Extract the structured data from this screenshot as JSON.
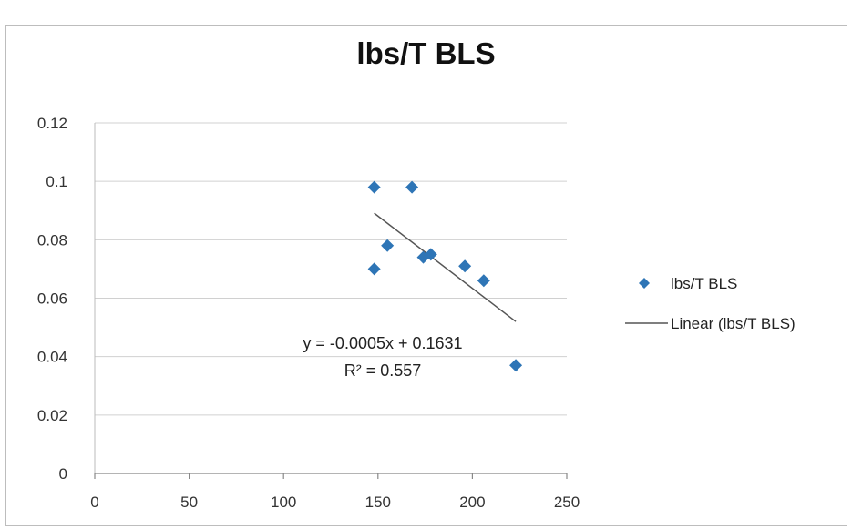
{
  "chart_data": {
    "type": "scatter",
    "title": "lbs/T BLS",
    "xlabel": "",
    "ylabel": "",
    "xlim": [
      0,
      250
    ],
    "ylim": [
      0,
      0.12
    ],
    "x_ticks": [
      0,
      50,
      100,
      150,
      200,
      250
    ],
    "y_ticks": [
      0,
      0.02,
      0.04,
      0.06,
      0.08,
      0.1,
      0.12
    ],
    "x_tick_labels": [
      "0",
      "50",
      "100",
      "150",
      "200",
      "250"
    ],
    "y_tick_labels": [
      "0",
      "0.02",
      "0.04",
      "0.06",
      "0.08",
      "0.1",
      "0.12"
    ],
    "grid": "horizontal",
    "legend_position": "right",
    "series": [
      {
        "name": "lbs/T BLS",
        "marker": "diamond",
        "color": "#2e75b6",
        "points": [
          {
            "x": 148,
            "y": 0.098
          },
          {
            "x": 168,
            "y": 0.098
          },
          {
            "x": 155,
            "y": 0.078
          },
          {
            "x": 148,
            "y": 0.07
          },
          {
            "x": 174,
            "y": 0.074
          },
          {
            "x": 178,
            "y": 0.075
          },
          {
            "x": 196,
            "y": 0.071
          },
          {
            "x": 206,
            "y": 0.066
          },
          {
            "x": 223,
            "y": 0.037
          }
        ]
      },
      {
        "name": "Linear (lbs/T BLS)",
        "type": "trendline",
        "color": "#555555",
        "x_range": [
          148,
          223
        ],
        "y_at_range": [
          0.0891,
          0.052
        ]
      }
    ],
    "annotations": {
      "equation": "y = -0.0005x + 0.1631",
      "r_squared": "R² = 0.557"
    }
  }
}
